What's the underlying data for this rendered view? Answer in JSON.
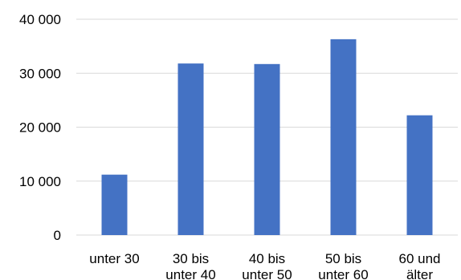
{
  "chart_data": {
    "type": "bar",
    "categories": [
      [
        "unter 30"
      ],
      [
        "30 bis",
        "unter 40"
      ],
      [
        "40 bis",
        "unter 50"
      ],
      [
        "50 bis",
        "unter 60"
      ],
      [
        "60 und",
        "älter"
      ]
    ],
    "values": [
      11200,
      31800,
      31700,
      36300,
      22200
    ],
    "y_ticks": [
      0,
      10000,
      20000,
      30000,
      40000
    ],
    "y_tick_labels": [
      "0",
      "10 000",
      "20 000",
      "30 000",
      "40 000"
    ],
    "ylim": [
      0,
      40000
    ],
    "grid": true,
    "colors": {
      "bar": "#4472c4",
      "grid": "#d9d9d9",
      "text": "#000000"
    }
  }
}
